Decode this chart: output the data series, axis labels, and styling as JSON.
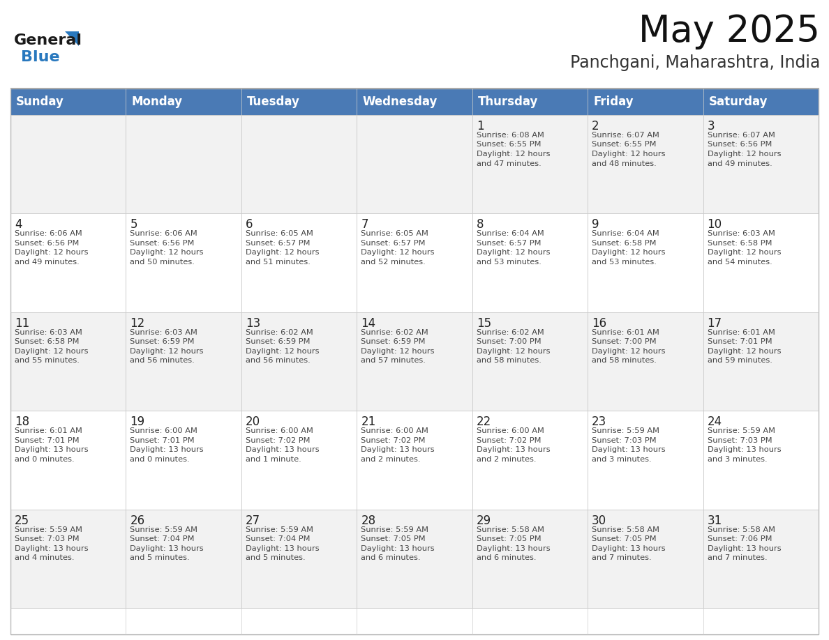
{
  "title": "May 2025",
  "subtitle": "Panchgani, Maharashtra, India",
  "days_of_week": [
    "Sunday",
    "Monday",
    "Tuesday",
    "Wednesday",
    "Thursday",
    "Friday",
    "Saturday"
  ],
  "header_bg": "#4a7ab5",
  "header_text": "#ffffff",
  "row_bg_odd": "#f2f2f2",
  "row_bg_even": "#ffffff",
  "cell_border": "#cccccc",
  "day_number_color": "#222222",
  "text_color": "#444444",
  "title_color": "#111111",
  "subtitle_color": "#333333",
  "logo_general_color": "#1a1a1a",
  "logo_blue_color": "#2878be",
  "logo_triangle_color": "#2878be",
  "calendar_data": [
    [
      {
        "day": "",
        "sunrise": "",
        "sunset": "",
        "daylight": ""
      },
      {
        "day": "",
        "sunrise": "",
        "sunset": "",
        "daylight": ""
      },
      {
        "day": "",
        "sunrise": "",
        "sunset": "",
        "daylight": ""
      },
      {
        "day": "",
        "sunrise": "",
        "sunset": "",
        "daylight": ""
      },
      {
        "day": "1",
        "sunrise": "6:08 AM",
        "sunset": "6:55 PM",
        "daylight": "12 hours\nand 47 minutes."
      },
      {
        "day": "2",
        "sunrise": "6:07 AM",
        "sunset": "6:55 PM",
        "daylight": "12 hours\nand 48 minutes."
      },
      {
        "day": "3",
        "sunrise": "6:07 AM",
        "sunset": "6:56 PM",
        "daylight": "12 hours\nand 49 minutes."
      }
    ],
    [
      {
        "day": "4",
        "sunrise": "6:06 AM",
        "sunset": "6:56 PM",
        "daylight": "12 hours\nand 49 minutes."
      },
      {
        "day": "5",
        "sunrise": "6:06 AM",
        "sunset": "6:56 PM",
        "daylight": "12 hours\nand 50 minutes."
      },
      {
        "day": "6",
        "sunrise": "6:05 AM",
        "sunset": "6:57 PM",
        "daylight": "12 hours\nand 51 minutes."
      },
      {
        "day": "7",
        "sunrise": "6:05 AM",
        "sunset": "6:57 PM",
        "daylight": "12 hours\nand 52 minutes."
      },
      {
        "day": "8",
        "sunrise": "6:04 AM",
        "sunset": "6:57 PM",
        "daylight": "12 hours\nand 53 minutes."
      },
      {
        "day": "9",
        "sunrise": "6:04 AM",
        "sunset": "6:58 PM",
        "daylight": "12 hours\nand 53 minutes."
      },
      {
        "day": "10",
        "sunrise": "6:03 AM",
        "sunset": "6:58 PM",
        "daylight": "12 hours\nand 54 minutes."
      }
    ],
    [
      {
        "day": "11",
        "sunrise": "6:03 AM",
        "sunset": "6:58 PM",
        "daylight": "12 hours\nand 55 minutes."
      },
      {
        "day": "12",
        "sunrise": "6:03 AM",
        "sunset": "6:59 PM",
        "daylight": "12 hours\nand 56 minutes."
      },
      {
        "day": "13",
        "sunrise": "6:02 AM",
        "sunset": "6:59 PM",
        "daylight": "12 hours\nand 56 minutes."
      },
      {
        "day": "14",
        "sunrise": "6:02 AM",
        "sunset": "6:59 PM",
        "daylight": "12 hours\nand 57 minutes."
      },
      {
        "day": "15",
        "sunrise": "6:02 AM",
        "sunset": "7:00 PM",
        "daylight": "12 hours\nand 58 minutes."
      },
      {
        "day": "16",
        "sunrise": "6:01 AM",
        "sunset": "7:00 PM",
        "daylight": "12 hours\nand 58 minutes."
      },
      {
        "day": "17",
        "sunrise": "6:01 AM",
        "sunset": "7:01 PM",
        "daylight": "12 hours\nand 59 minutes."
      }
    ],
    [
      {
        "day": "18",
        "sunrise": "6:01 AM",
        "sunset": "7:01 PM",
        "daylight": "13 hours\nand 0 minutes."
      },
      {
        "day": "19",
        "sunrise": "6:00 AM",
        "sunset": "7:01 PM",
        "daylight": "13 hours\nand 0 minutes."
      },
      {
        "day": "20",
        "sunrise": "6:00 AM",
        "sunset": "7:02 PM",
        "daylight": "13 hours\nand 1 minute."
      },
      {
        "day": "21",
        "sunrise": "6:00 AM",
        "sunset": "7:02 PM",
        "daylight": "13 hours\nand 2 minutes."
      },
      {
        "day": "22",
        "sunrise": "6:00 AM",
        "sunset": "7:02 PM",
        "daylight": "13 hours\nand 2 minutes."
      },
      {
        "day": "23",
        "sunrise": "5:59 AM",
        "sunset": "7:03 PM",
        "daylight": "13 hours\nand 3 minutes."
      },
      {
        "day": "24",
        "sunrise": "5:59 AM",
        "sunset": "7:03 PM",
        "daylight": "13 hours\nand 3 minutes."
      }
    ],
    [
      {
        "day": "25",
        "sunrise": "5:59 AM",
        "sunset": "7:03 PM",
        "daylight": "13 hours\nand 4 minutes."
      },
      {
        "day": "26",
        "sunrise": "5:59 AM",
        "sunset": "7:04 PM",
        "daylight": "13 hours\nand 5 minutes."
      },
      {
        "day": "27",
        "sunrise": "5:59 AM",
        "sunset": "7:04 PM",
        "daylight": "13 hours\nand 5 minutes."
      },
      {
        "day": "28",
        "sunrise": "5:59 AM",
        "sunset": "7:05 PM",
        "daylight": "13 hours\nand 6 minutes."
      },
      {
        "day": "29",
        "sunrise": "5:58 AM",
        "sunset": "7:05 PM",
        "daylight": "13 hours\nand 6 minutes."
      },
      {
        "day": "30",
        "sunrise": "5:58 AM",
        "sunset": "7:05 PM",
        "daylight": "13 hours\nand 7 minutes."
      },
      {
        "day": "31",
        "sunrise": "5:58 AM",
        "sunset": "7:06 PM",
        "daylight": "13 hours\nand 7 minutes."
      }
    ]
  ]
}
